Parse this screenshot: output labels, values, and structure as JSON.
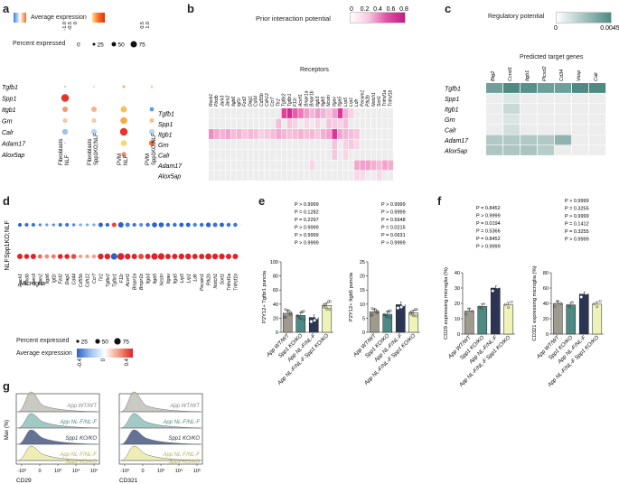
{
  "panels": {
    "a": {
      "letter": "a",
      "legend_title": "Average expression",
      "legend_ticks": [
        "-1.0",
        "-0.5",
        "0",
        "0.5",
        "1.0"
      ],
      "size_title": "Percent expressed",
      "size_ticks": [
        "0",
        "25",
        "50",
        "75"
      ],
      "genes": [
        "Tgfb1",
        "Spp1",
        "Itgb1",
        "Grn",
        "Calr",
        "Adam17",
        "Alox5ap"
      ],
      "groups": [
        "Fibroblasts NLF",
        "Fibroblasts Spp1KO;NLF",
        "PVM NLF",
        "PVM Spp1KO;NLF"
      ]
    },
    "b": {
      "letter": "b",
      "legend_title": "Prior interaction potential",
      "legend_ticks": [
        "0",
        "0.2",
        "0.4",
        "0.6",
        "0.8"
      ],
      "axis_title": "Receptors",
      "receptors": [
        "Rock1",
        "Plxdb",
        "Jam3",
        "Jam2",
        "Itgb6",
        "Igf1r",
        "Fzd2",
        "Dag1",
        "Cd44",
        "Cd55b",
        "Cdh12",
        "Ccr7",
        "Tlr2",
        "Tgfbr2",
        "Tgfbr1",
        "F11r",
        "Acvrl1",
        "Bmpr1a",
        "Bmpr1b",
        "Itgb3",
        "Itgb5",
        "Ncstn",
        "Itgav",
        "Itga5",
        "Lrp5",
        "Lrp1",
        "Ldlr",
        "Pecam1",
        "Ptk2b",
        "Notch1",
        "Sort1",
        "Tnfrsf1a",
        "Tnfrsf1b"
      ],
      "ligands": [
        "Tgfb1",
        "Spp1",
        "Itgb1",
        "Grn",
        "Calr",
        "Adam17",
        "Alox5ap"
      ]
    },
    "c": {
      "letter": "c",
      "legend_title": "Regulatory potential",
      "legend_ticks": [
        "0",
        "0.0045"
      ],
      "axis_title": "Predicted target genes",
      "targets": [
        "Btg2",
        "Ccnd1",
        "Itgb1",
        "Plcxd2",
        "Cd34",
        "Vasp",
        "Calr"
      ],
      "ligands": [
        "Tgfb1",
        "Spp1",
        "Itgb1",
        "Grn",
        "Calr",
        "Adam17",
        "Alox5ap"
      ]
    },
    "d": {
      "letter": "d",
      "rows": [
        "Spp1KO;NLF",
        "NLF"
      ],
      "xlabel": "Microglia",
      "genes": [
        "Rock1",
        "Plxdb",
        "Jam3",
        "Jam2",
        "Itgb6",
        "Igf1r",
        "Fzd2",
        "Dag1",
        "Cd44",
        "Cd55b",
        "Cdh12",
        "Ccr7",
        "Tlr2",
        "Tgfbr2",
        "Tgfbr1",
        "F11r",
        "Acvrl1",
        "Bmpr1a",
        "Bmpr1b",
        "Itgb3",
        "Itgb5",
        "Ncstn",
        "Itgav",
        "Itga5",
        "Lrp5",
        "Lrp1",
        "Ldlr",
        "Pecam1",
        "Ptk2b",
        "Notch1",
        "Sort1",
        "Tnfrsf1a",
        "Tnfrsf1b"
      ],
      "size_title": "Percent expressed",
      "size_ticks": [
        "25",
        "50",
        "75"
      ],
      "legend_title": "Average expression",
      "legend_ticks": [
        "-0.4",
        "0",
        "0.4"
      ]
    },
    "e": {
      "letter": "e",
      "left_ylabel": "P2Y12+ Tgfbr1 puncta",
      "right_ylabel": "P2Y12+ Itgb5 puncta",
      "left_pvalues": [
        "P > 0.9999",
        "P = 0.1282",
        "P = 0.2297",
        "P > 0.9999",
        "P > 0.9999",
        "P > 0.9999"
      ],
      "right_pvalues": [
        "P > 0.9999",
        "P > 0.9999",
        "P = 0.5648",
        "P = 0.0215",
        "P = 0.0631",
        "P > 0.9999"
      ]
    },
    "f": {
      "letter": "f",
      "left_ylabel": "CD29 expressing microglia (%)",
      "right_ylabel": "CD321 expressing microglia (%)",
      "left_pvalues": [
        "P = 0.8452",
        "P > 0.9999",
        "P = 0.0194",
        "P = 0.5366",
        "P = 0.8452",
        "P > 0.9999"
      ],
      "right_pvalues": [
        "P > 0.9999",
        "P = 0.3255",
        "P > 0.9999",
        "P = 0.1412",
        "P = 0.3255",
        "P > 0.9999"
      ]
    },
    "g": {
      "letter": "g",
      "ylabel": "Max (%)",
      "left_xlabel": "CD29",
      "right_xlabel": "CD321",
      "x_ticks": [
        "-10³",
        "0",
        "10³",
        "10⁴",
        "10⁵"
      ]
    }
  },
  "group_labels": [
    "App WT/WT",
    "Spp1 KO/KO",
    "App NL-F/NL-F",
    "App NL-F/NL-F Spp1 KO/KO"
  ],
  "chart_data": [
    {
      "type": "bar",
      "panel": "e-left",
      "categories": [
        "AppWT/WT",
        "Spp1KO/KO",
        "AppNL-F/NL-F",
        "AppNL-F/NL-F Spp1KO/KO"
      ],
      "values": [
        27,
        24,
        21,
        38
      ],
      "ylabel": "P2Y12+ Tgfbr1 puncta",
      "ylim": [
        0,
        100
      ],
      "yticks": [
        0,
        20,
        40,
        60,
        80,
        100
      ]
    },
    {
      "type": "bar",
      "panel": "e-right",
      "categories": [
        "AppWT/WT",
        "Spp1KO/KO",
        "AppNL-F/NL-F",
        "AppNL-F/NL-F Spp1KO/KO"
      ],
      "values": [
        7.3,
        6.4,
        9.8,
        6.9
      ],
      "ylabel": "P2Y12+ Itgb5 puncta",
      "ylim": [
        0,
        25
      ],
      "yticks": [
        0,
        5,
        10,
        15,
        20,
        25
      ]
    },
    {
      "type": "bar",
      "panel": "f-left",
      "categories": [
        "AppWT/WT",
        "Spp1KO/KO",
        "AppNL-F/NL-F",
        "AppNL-F/NL-F Spp1KO/KO"
      ],
      "values": [
        15,
        18,
        30,
        19
      ],
      "ylabel": "CD29 expressing microglia (%)",
      "ylim": [
        0,
        40
      ],
      "yticks": [
        0,
        10,
        20,
        30,
        40
      ]
    },
    {
      "type": "bar",
      "panel": "f-right",
      "categories": [
        "AppWT/WT",
        "Spp1KO/KO",
        "AppNL-F/NL-F",
        "AppNL-F/NL-F Spp1KO/KO"
      ],
      "values": [
        40,
        38,
        52,
        39
      ],
      "ylabel": "CD321 expressing microglia (%)",
      "ylim": [
        0,
        80
      ],
      "yticks": [
        0,
        20,
        40,
        60,
        80
      ]
    }
  ]
}
